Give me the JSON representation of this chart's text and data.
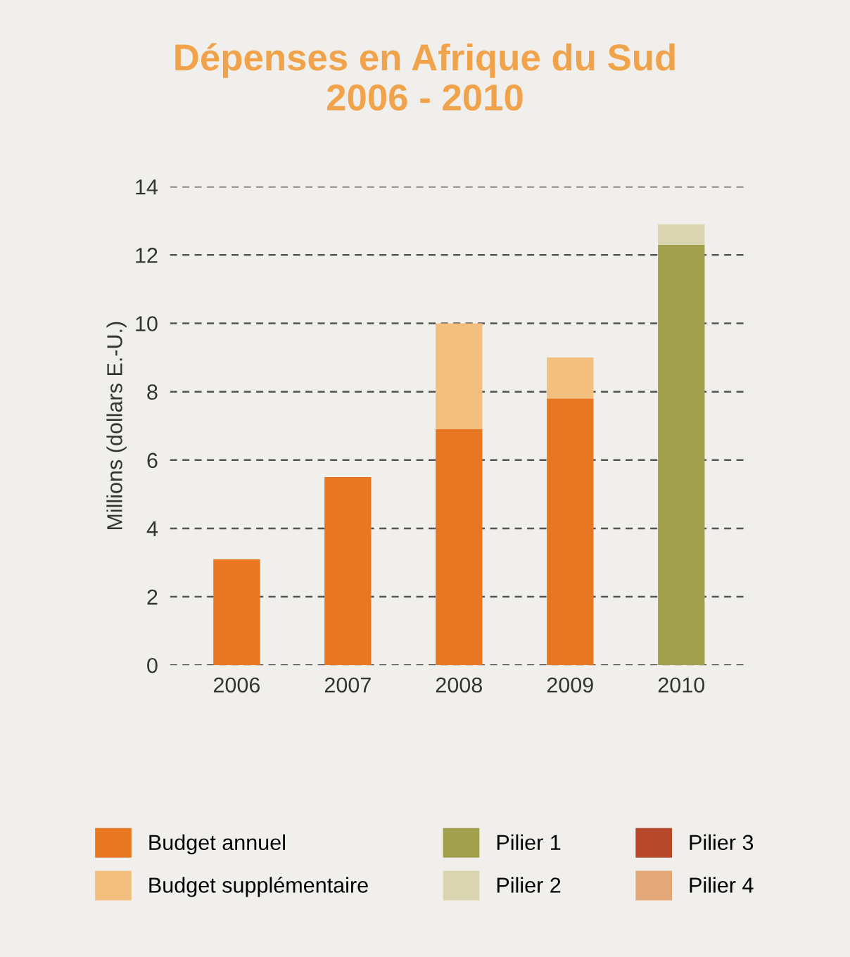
{
  "chart_data": {
    "type": "bar",
    "title": "Dépenses en Afrique du Sud\n2006 - 2010",
    "ylabel": "Millions (dollars E.-U.)",
    "categories": [
      "2006",
      "2007",
      "2008",
      "2009",
      "2010"
    ],
    "stacked": true,
    "series": [
      {
        "name": "Budget annuel",
        "color": "#e87722",
        "values": [
          3.1,
          5.5,
          6.9,
          7.8,
          null
        ]
      },
      {
        "name": "Budget supplémentaire",
        "color": "#f2bf7f",
        "values": [
          null,
          null,
          3.1,
          1.2,
          null
        ]
      },
      {
        "name": "Pilier 1",
        "color": "#a3a04d",
        "values": [
          null,
          null,
          null,
          null,
          12.3
        ]
      },
      {
        "name": "Pilier 2",
        "color": "#d9d5b0",
        "values": [
          null,
          null,
          null,
          null,
          0.6
        ]
      },
      {
        "name": "Pilier 3",
        "color": "#b5492a",
        "values": [
          null,
          null,
          null,
          null,
          null
        ]
      },
      {
        "name": "Pilier 4",
        "color": "#e2a878",
        "values": [
          null,
          null,
          null,
          null,
          null
        ]
      }
    ],
    "ylim": [
      0,
      14
    ],
    "yticks": [
      0,
      2,
      4,
      6,
      8,
      10,
      12,
      14
    ],
    "grid": "y",
    "legend": "bottom"
  }
}
